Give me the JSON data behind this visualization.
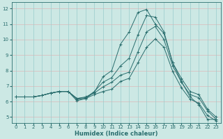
{
  "xlabel": "Humidex (Indice chaleur)",
  "bg_color": "#cce8e4",
  "grid_color_h": "#ddb8b8",
  "grid_color_v": "#99cccc",
  "line_color": "#2a6e6e",
  "xlim": [
    -0.5,
    23.5
  ],
  "ylim": [
    4.6,
    12.4
  ],
  "yticks": [
    5,
    6,
    7,
    8,
    9,
    10,
    11,
    12
  ],
  "xticks": [
    0,
    1,
    2,
    3,
    4,
    5,
    6,
    7,
    8,
    9,
    10,
    11,
    12,
    13,
    14,
    15,
    16,
    17,
    18,
    19,
    20,
    21,
    22,
    23
  ],
  "lines": [
    [
      6.3,
      6.3,
      6.3,
      6.4,
      6.55,
      6.65,
      6.65,
      6.05,
      6.2,
      6.6,
      7.6,
      8.0,
      9.7,
      10.5,
      11.75,
      11.95,
      11.0,
      10.4,
      8.5,
      7.3,
      6.3,
      5.8,
      4.85,
      4.85
    ],
    [
      6.3,
      6.3,
      6.3,
      6.4,
      6.55,
      6.65,
      6.65,
      6.2,
      6.25,
      6.65,
      7.25,
      7.55,
      8.3,
      8.8,
      10.3,
      11.55,
      11.45,
      10.5,
      8.5,
      7.5,
      6.65,
      6.45,
      5.5,
      5.0
    ],
    [
      6.3,
      6.3,
      6.3,
      6.4,
      6.55,
      6.65,
      6.65,
      6.2,
      6.3,
      6.55,
      6.95,
      7.25,
      7.7,
      7.9,
      9.2,
      10.5,
      10.85,
      10.0,
      8.3,
      7.25,
      6.45,
      6.25,
      5.4,
      4.85
    ],
    [
      6.3,
      6.3,
      6.3,
      6.4,
      6.55,
      6.65,
      6.65,
      6.15,
      6.2,
      6.45,
      6.65,
      6.8,
      7.3,
      7.5,
      8.5,
      9.5,
      10.05,
      9.5,
      7.95,
      6.9,
      6.15,
      5.9,
      5.1,
      4.75
    ]
  ]
}
